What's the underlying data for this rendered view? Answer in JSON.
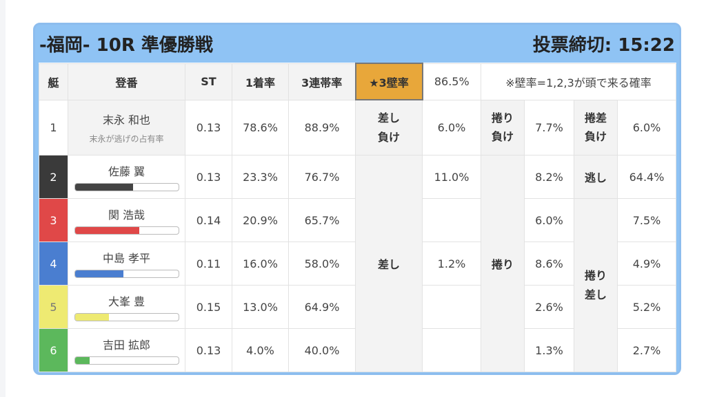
{
  "header": {
    "title": "-福岡- 10R 準優勝戦",
    "deadline": "投票締切: 15:22"
  },
  "table": {
    "columns": [
      "艇",
      "登番",
      "ST",
      "1着率",
      "3連帯率",
      "★3壁率",
      "86.5%",
      "※壁率=1,2,3が頭で来る確率"
    ],
    "rows": [
      {
        "boat": "1",
        "name": "末永 和也",
        "note": "末永が逃げの占有率",
        "st": "0.13",
        "first": "78.6%",
        "top3": "88.9%",
        "sashi_label": "差し負け",
        "sashi_rate": "6.0%",
        "makuri_label": "捲り負け",
        "makuri_rate": "7.7%",
        "right_label": "捲差負け",
        "right_rate": "6.0%"
      },
      {
        "boat": "2",
        "name": "佐藤 翼",
        "bar": 56,
        "st": "0.13",
        "first": "23.3%",
        "top3": "76.7%",
        "sashi_label": "差し",
        "sashi_rate": "11.0%",
        "makuri_label": "捲り",
        "makuri_rate": "8.2%",
        "right_label": "逃し",
        "right_rate": "64.4%"
      },
      {
        "boat": "3",
        "name": "関 浩哉",
        "bar": 62,
        "st": "0.14",
        "first": "20.9%",
        "top3": "65.7%",
        "makuri_rate": "6.0%",
        "right_label": "捲り差し",
        "right_rate": "7.5%"
      },
      {
        "boat": "4",
        "name": "中島 孝平",
        "bar": 47,
        "st": "0.11",
        "first": "16.0%",
        "top3": "58.0%",
        "sashi_rate": "1.2%",
        "makuri_rate": "8.6%",
        "right_rate": "4.9%"
      },
      {
        "boat": "5",
        "name": "大峯 豊",
        "bar": 33,
        "st": "0.15",
        "first": "13.0%",
        "top3": "64.9%",
        "makuri_rate": "2.6%",
        "right_rate": "5.2%"
      },
      {
        "boat": "6",
        "name": "吉田 拡郎",
        "bar": 14,
        "st": "0.13",
        "first": "4.0%",
        "top3": "40.0%",
        "makuri_rate": "1.3%",
        "right_rate": "2.7%"
      }
    ]
  }
}
